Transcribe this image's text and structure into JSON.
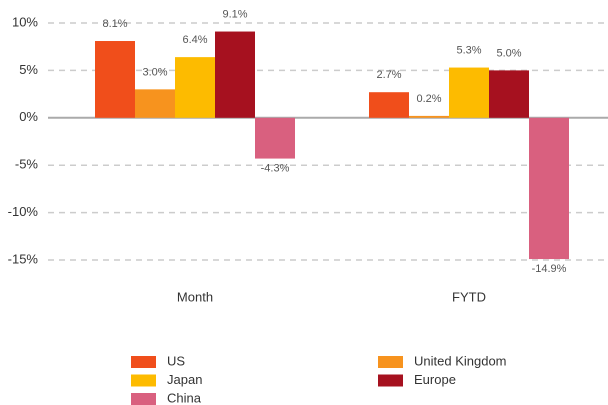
{
  "chart_data": {
    "type": "bar",
    "categories": [
      "Month",
      "FYTD"
    ],
    "series": [
      {
        "name": "US",
        "color": "#f04e1b",
        "values": [
          8.1,
          2.7
        ],
        "value_labels": [
          "8.1%",
          "2.7%"
        ]
      },
      {
        "name": "United Kingdom",
        "color": "#f7931e",
        "values": [
          3.0,
          0.2
        ],
        "value_labels": [
          "3.0%",
          "0.2%"
        ]
      },
      {
        "name": "Japan",
        "color": "#fdbb00",
        "values": [
          6.4,
          5.3
        ],
        "value_labels": [
          "6.4%",
          "5.3%"
        ]
      },
      {
        "name": "Europe",
        "color": "#a6111f",
        "values": [
          9.1,
          5.0
        ],
        "value_labels": [
          "9.1%",
          "5.0%"
        ]
      },
      {
        "name": "China",
        "color": "#d9607f",
        "values": [
          -4.3,
          -14.9
        ],
        "value_labels": [
          "-4.3%",
          "-14.9%"
        ]
      }
    ],
    "ylim": [
      -15,
      10
    ],
    "yticks": [
      {
        "value": 10,
        "label": "10%"
      },
      {
        "value": 5,
        "label": "5%"
      },
      {
        "value": 0,
        "label": "0%"
      },
      {
        "value": -5,
        "label": "-5%"
      },
      {
        "value": -10,
        "label": "-10%"
      },
      {
        "value": -15,
        "label": "-15%"
      }
    ],
    "grid": true
  }
}
